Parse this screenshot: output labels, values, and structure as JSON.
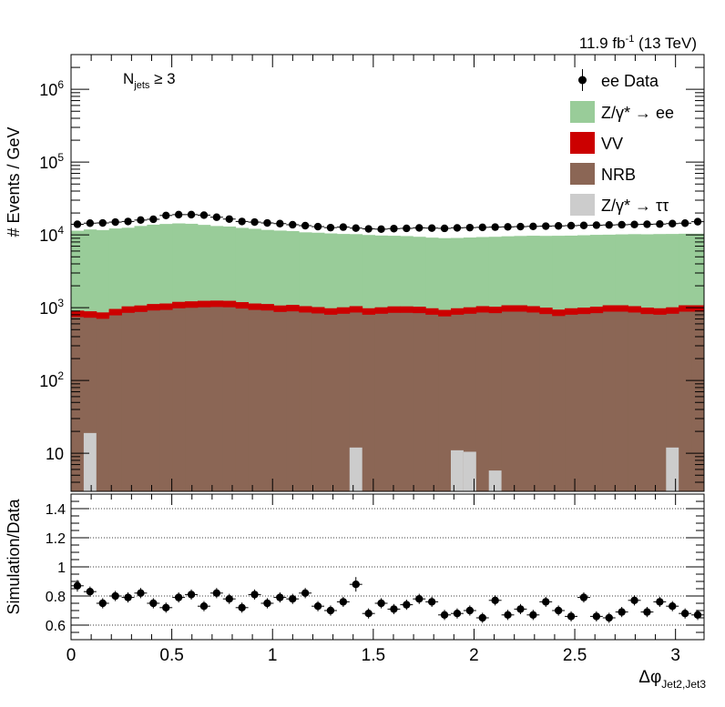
{
  "lumi": {
    "text": "11.9 fb",
    "sup": "-1",
    "energy": " (13 TeV)"
  },
  "njets": {
    "main": "N",
    "sub": "jets",
    "rel": " ≥ 3"
  },
  "ylabel_top": "# Events / GeV",
  "ylabel_bottom": "Simulation/Data",
  "xlabel": {
    "main": "Δφ",
    "sub": "Jet2,Jet3"
  },
  "legend": [
    {
      "key": "data",
      "label": "ee Data",
      "color": "#000000"
    },
    {
      "key": "zee",
      "label": "Z/γ* → ee",
      "color": "#99cc99"
    },
    {
      "key": "vv",
      "label": "VV",
      "color": "#cc0000"
    },
    {
      "key": "nrb",
      "label": "NRB",
      "color": "#8b6655"
    },
    {
      "key": "ztt",
      "label": "Z/γ* → ττ",
      "color": "#cccccc"
    }
  ],
  "chart_data": [
    {
      "type": "bar",
      "stacked": true,
      "log_y": true,
      "ylim": [
        3,
        3000000
      ],
      "xlim": [
        0,
        3.1416
      ],
      "nbins": 50,
      "yticks": [
        10,
        100,
        1000,
        10000,
        100000,
        1000000
      ],
      "ytick_labels": [
        "10",
        "10²",
        "10³",
        "10⁴",
        "10⁵",
        "10⁶"
      ],
      "bin_edges_first": 0,
      "bin_width": 0.0628,
      "series": [
        {
          "name": "NRB",
          "color": "#8b6655",
          "values": [
            760,
            740,
            720,
            800,
            880,
            900,
            940,
            960,
            1000,
            1020,
            1040,
            1050,
            1040,
            1000,
            960,
            940,
            900,
            920,
            880,
            860,
            820,
            850,
            880,
            820,
            850,
            870,
            870,
            860,
            820,
            780,
            820,
            850,
            880,
            860,
            900,
            900,
            880,
            840,
            790,
            820,
            840,
            860,
            900,
            900,
            880,
            840,
            820,
            850,
            900,
            900
          ]
        },
        {
          "name": "VV",
          "color": "#cc0000",
          "values": [
            150,
            150,
            140,
            160,
            160,
            170,
            180,
            180,
            200,
            200,
            200,
            200,
            200,
            190,
            180,
            180,
            170,
            170,
            170,
            160,
            160,
            160,
            170,
            160,
            160,
            170,
            170,
            170,
            160,
            150,
            160,
            160,
            170,
            170,
            180,
            180,
            170,
            160,
            150,
            160,
            160,
            170,
            180,
            180,
            170,
            160,
            160,
            160,
            180,
            180
          ]
        },
        {
          "name": "Z/γ* → ee",
          "color": "#99cc99",
          "values": [
            10500,
            11000,
            10800,
            11300,
            11500,
            12200,
            12700,
            13000,
            13200,
            13000,
            12500,
            12000,
            11800,
            11300,
            11000,
            10600,
            10400,
            10200,
            9800,
            9700,
            9500,
            9300,
            9200,
            9000,
            8800,
            8700,
            8600,
            8400,
            8200,
            8100,
            8100,
            8200,
            8300,
            8400,
            8500,
            8600,
            8700,
            8700,
            8800,
            8800,
            8900,
            9000,
            9000,
            9100,
            9200,
            9200,
            9300,
            9300,
            9300,
            9300
          ]
        },
        {
          "name": "Z/γ* → ττ",
          "color": "#cccccc",
          "values": [
            0,
            19,
            0,
            0,
            0,
            0,
            0,
            0,
            0,
            0,
            0,
            0,
            0,
            0,
            0,
            0,
            0,
            0,
            0,
            0,
            0,
            0,
            12,
            0,
            0,
            0,
            0,
            0,
            0,
            0,
            11,
            10.5,
            0,
            5.8,
            0,
            0,
            0,
            0,
            0,
            0,
            0,
            0,
            0,
            0,
            0,
            0,
            0,
            12,
            0,
            0
          ]
        }
      ],
      "data_series": {
        "name": "ee Data",
        "values": [
          14000,
          14500,
          14600,
          15000,
          15300,
          16000,
          16400,
          18500,
          19000,
          19000,
          18700,
          17500,
          16500,
          15300,
          15000,
          14600,
          14300,
          13800,
          13400,
          13000,
          12600,
          12800,
          12400,
          12100,
          12000,
          12200,
          12300,
          12500,
          12400,
          12300,
          12500,
          12600,
          12700,
          12800,
          12900,
          13000,
          13100,
          13200,
          13300,
          13400,
          13500,
          13600,
          13700,
          13800,
          13900,
          14000,
          14100,
          14300,
          14500,
          15200
        ]
      }
    },
    {
      "type": "scatter",
      "ylim": [
        0.5,
        1.5
      ],
      "yticks": [
        0.6,
        0.8,
        1.0,
        1.2,
        1.4
      ],
      "ytick_labels": [
        "0.6",
        "0.8",
        "1",
        "1.2",
        "1.4"
      ],
      "xticks": [
        0,
        0.5,
        1,
        1.5,
        2,
        2.5,
        3
      ],
      "xtick_labels": [
        "0",
        "0.5",
        "1",
        "1.5",
        "2",
        "2.5",
        "3"
      ],
      "grid_y": true,
      "values": [
        0.87,
        0.83,
        0.75,
        0.8,
        0.79,
        0.82,
        0.75,
        0.72,
        0.79,
        0.81,
        0.73,
        0.82,
        0.78,
        0.72,
        0.81,
        0.75,
        0.79,
        0.78,
        0.82,
        0.73,
        0.7,
        0.76,
        0.88,
        0.68,
        0.75,
        0.71,
        0.74,
        0.78,
        0.76,
        0.67,
        0.68,
        0.7,
        0.65,
        0.77,
        0.67,
        0.71,
        0.67,
        0.76,
        0.7,
        0.66,
        0.79,
        0.66,
        0.65,
        0.69,
        0.77,
        0.69,
        0.76,
        0.73,
        0.68,
        0.67
      ],
      "errors": [
        0.04,
        0.035,
        0.035,
        0.035,
        0.035,
        0.035,
        0.035,
        0.035,
        0.035,
        0.035,
        0.035,
        0.035,
        0.035,
        0.035,
        0.035,
        0.035,
        0.035,
        0.035,
        0.035,
        0.035,
        0.035,
        0.035,
        0.05,
        0.035,
        0.035,
        0.035,
        0.035,
        0.035,
        0.035,
        0.035,
        0.035,
        0.035,
        0.035,
        0.035,
        0.035,
        0.035,
        0.035,
        0.035,
        0.035,
        0.035,
        0.035,
        0.035,
        0.035,
        0.035,
        0.035,
        0.035,
        0.035,
        0.035,
        0.035,
        0.035
      ]
    }
  ]
}
